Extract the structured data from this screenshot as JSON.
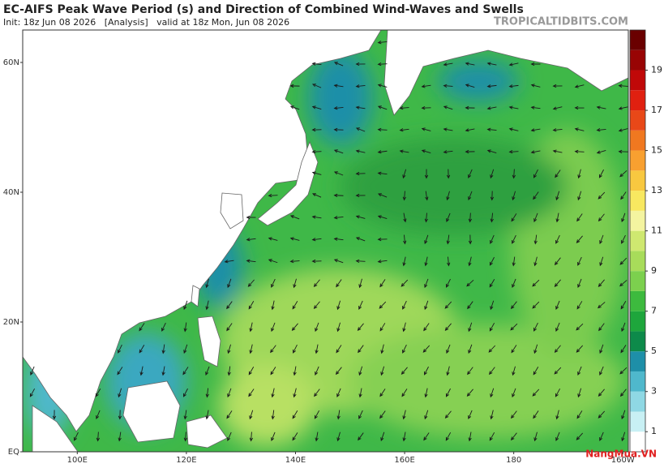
{
  "header": {
    "title": "EC-AIFS Peak Wave Period (s) and Direction of Combined Wind-Waves and Swells",
    "init": "Init: 18z Jun 08 2026   [Analysis]   valid at 18z Mon, Jun 08 2026",
    "source": "TROPICALTIDBITS.COM"
  },
  "map": {
    "lonlim": [
      90,
      201
    ],
    "latlim": [
      0,
      65
    ],
    "lat_ticks": [
      {
        "value": 60,
        "label": "60N"
      },
      {
        "value": 40,
        "label": "40N"
      },
      {
        "value": 20,
        "label": "20N"
      },
      {
        "value": 0,
        "label": "EQ"
      }
    ],
    "lon_ticks": [
      {
        "value": 100,
        "label": "100E"
      },
      {
        "value": 120,
        "label": "120E"
      },
      {
        "value": 140,
        "label": "140E"
      },
      {
        "value": 160,
        "label": "160E"
      },
      {
        "value": 180,
        "label": "180"
      },
      {
        "value": 200,
        "label": "160W"
      }
    ]
  },
  "colorbar": {
    "lim": [
      0,
      21
    ],
    "ticks": [
      1,
      3,
      5,
      7,
      9,
      11,
      13,
      15,
      17,
      19
    ],
    "colors": [
      "#ffffff",
      "#c8f0f4",
      "#8fd8e4",
      "#4fb8cc",
      "#1e8fa8",
      "#0d8a4a",
      "#1ea63c",
      "#3dba3e",
      "#7cd04e",
      "#a8dc5a",
      "#cfe870",
      "#f4f4a0",
      "#f8e860",
      "#f8c840",
      "#f8a030",
      "#f07820",
      "#e84818",
      "#e02010",
      "#c00808",
      "#980404",
      "#6a0000"
    ]
  },
  "watermark": "NangMua.VN"
}
